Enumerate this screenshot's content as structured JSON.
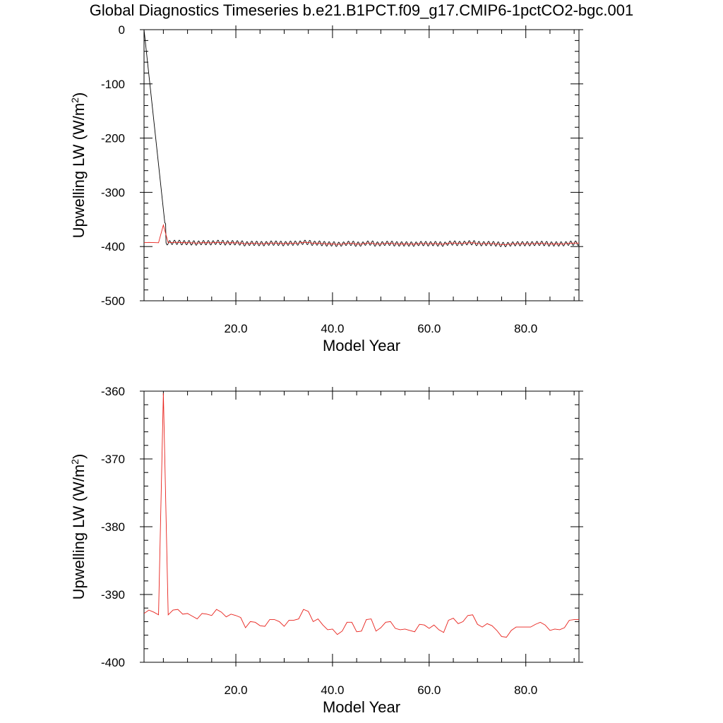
{
  "title": "Global Diagnostics Timeseries b.e21.B1PCT.f09_g17.CMIP6-1pctCO2-bgc.001",
  "colors": {
    "monthly": "#000000",
    "annual": "#e8211b"
  },
  "chart_data": [
    {
      "type": "line",
      "title": "",
      "xlabel": "Model Year",
      "ylabel_text": "Upwelling LW (W/m",
      "ylabel_sup": "2",
      "ylabel_close": ")",
      "xlim": [
        1,
        91
      ],
      "ylim": [
        -500,
        0
      ],
      "xticks": [
        20,
        40,
        60,
        80
      ],
      "xtick_labels": [
        "20.0",
        "40.0",
        "60.0",
        "80.0"
      ],
      "yticks": [
        0,
        -100,
        -200,
        -300,
        -400,
        -500
      ],
      "ytick_labels": [
        "0",
        "-100",
        "-200",
        "-300",
        "-400",
        "-500"
      ],
      "grid": false,
      "series": [
        {
          "style": "monthly",
          "color": "#000000",
          "note_start": [
            1.0,
            0
          ],
          "seasonal_amplitude": 4,
          "mean_from": 5.3
        },
        {
          "style": "annual",
          "color": "#e8211b"
        }
      ]
    },
    {
      "type": "line",
      "title": "",
      "xlabel": "Model Year",
      "ylabel_text": "Upwelling LW (W/m",
      "ylabel_sup": "2",
      "ylabel_close": ")",
      "xlim": [
        1,
        91
      ],
      "ylim": [
        -400,
        -360
      ],
      "xticks": [
        20,
        40,
        60,
        80
      ],
      "xtick_labels": [
        "20.0",
        "40.0",
        "60.0",
        "80.0"
      ],
      "yticks": [
        -360,
        -370,
        -380,
        -390,
        -400
      ],
      "ytick_labels": [
        "-360",
        "-370",
        "-380",
        "-390",
        "-400"
      ],
      "grid": false,
      "series": [
        {
          "style": "annual",
          "color": "#e8211b",
          "x": [
            1,
            2,
            3,
            4,
            5,
            6,
            7,
            8,
            9,
            10,
            11,
            12,
            13,
            14,
            15,
            16,
            17,
            18,
            19,
            20,
            21,
            22,
            23,
            24,
            25,
            26,
            27,
            28,
            29,
            30,
            31,
            32,
            33,
            34,
            35,
            36,
            37,
            38,
            39,
            40,
            41,
            42,
            43,
            44,
            45,
            46,
            47,
            48,
            49,
            50,
            51,
            52,
            53,
            54,
            55,
            56,
            57,
            58,
            59,
            60,
            61,
            62,
            63,
            64,
            65,
            66,
            67,
            68,
            69,
            70,
            71,
            72,
            73,
            74,
            75,
            76,
            77,
            78,
            79,
            80,
            81,
            82,
            83,
            84,
            85,
            86,
            87,
            88,
            89,
            90,
            91
          ],
          "y": [
            -392.8,
            -392.3,
            -392.6,
            -393.0,
            -360.3,
            -393.0,
            -392.3,
            -392.2,
            -392.9,
            -392.8,
            -393.2,
            -393.6,
            -392.8,
            -392.9,
            -393.1,
            -392.2,
            -392.6,
            -393.3,
            -392.9,
            -393.1,
            -393.4,
            -394.9,
            -394.0,
            -394.1,
            -394.6,
            -394.7,
            -393.7,
            -393.7,
            -394.0,
            -394.7,
            -393.8,
            -393.8,
            -393.6,
            -392.2,
            -392.5,
            -394.0,
            -393.6,
            -394.5,
            -395.2,
            -395.1,
            -395.9,
            -395.4,
            -394.1,
            -394.1,
            -395.5,
            -395.4,
            -393.7,
            -393.6,
            -395.4,
            -394.9,
            -394.1,
            -394.0,
            -395.0,
            -395.2,
            -395.1,
            -395.3,
            -395.5,
            -394.4,
            -394.5,
            -395.0,
            -394.5,
            -395.2,
            -395.6,
            -393.8,
            -393.5,
            -394.3,
            -394.0,
            -393.1,
            -393.0,
            -394.4,
            -394.8,
            -394.3,
            -394.6,
            -395.3,
            -396.2,
            -396.3,
            -395.3,
            -394.8,
            -394.8,
            -394.8,
            -394.8,
            -394.4,
            -394.1,
            -394.5,
            -395.3,
            -395.1,
            -395.2,
            -394.9,
            -393.8,
            -393.7,
            -393.7
          ]
        }
      ]
    }
  ]
}
